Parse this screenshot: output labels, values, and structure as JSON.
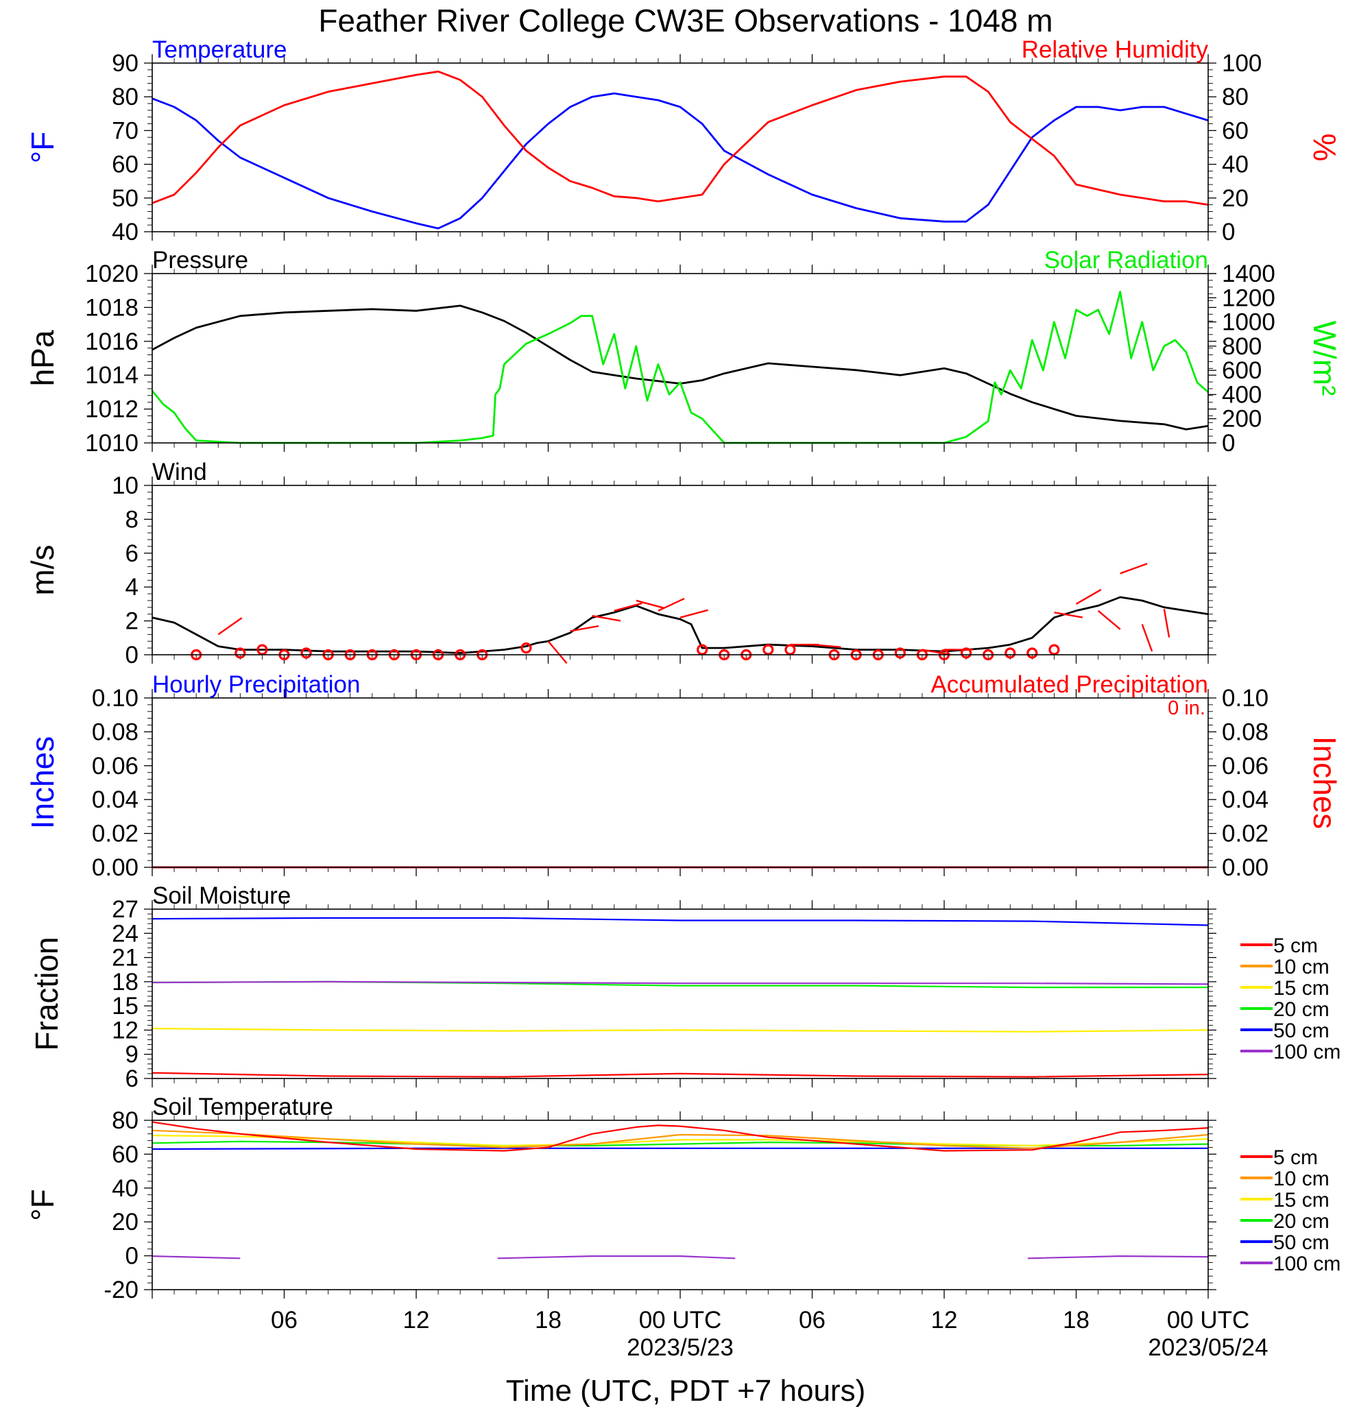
{
  "title": "Feather River College CW3E Observations - 1048 m",
  "xlabel": "Time (UTC, PDT +7 hours)",
  "x_ticks": [
    "06",
    "12",
    "18",
    "00 UTC",
    "06",
    "12",
    "18",
    "00 UTC"
  ],
  "x_dates": [
    "2023/5/23",
    "2023/05/24"
  ],
  "precip_total": "0 in.",
  "legend": [
    "5 cm",
    "10 cm",
    "15 cm",
    "20 cm",
    "50 cm",
    "100 cm"
  ],
  "colors": {
    "temperature": "#0000ff",
    "humidity": "#ff0000",
    "pressure": "#000000",
    "solar": "#00ee00",
    "wind": "#000000",
    "barbs": "#ff0000",
    "depths": [
      "#ff0000",
      "#ff9900",
      "#ffee00",
      "#00ee00",
      "#0000ff",
      "#9933cc"
    ]
  },
  "chart_data": [
    {
      "type": "line",
      "title_left": "Temperature",
      "title_right": "Relative Humidity",
      "ylabel_left": "°F",
      "ylabel_right": "%",
      "ylim_left": [
        40,
        90
      ],
      "ylim_right": [
        0,
        100
      ],
      "yticks_left": [
        "40",
        "50",
        "60",
        "70",
        "80",
        "90"
      ],
      "yticks_right": [
        "0",
        "20",
        "40",
        "60",
        "80",
        "100"
      ],
      "series": [
        {
          "name": "Temperature",
          "axis": "left",
          "x": [
            0,
            1,
            2,
            3,
            4,
            6,
            8,
            10,
            12,
            13,
            14,
            15,
            16,
            17,
            18,
            19,
            20,
            21,
            22,
            23,
            24,
            25,
            26,
            28,
            30,
            32,
            34,
            36,
            37,
            38,
            39,
            40,
            41,
            42,
            43,
            44,
            45,
            46,
            47,
            48
          ],
          "y": [
            79.5,
            77,
            73,
            67,
            62,
            56,
            50,
            46,
            42.5,
            41,
            44,
            50,
            58,
            66,
            72,
            77,
            80,
            81,
            80,
            79,
            77,
            72,
            64,
            57,
            51,
            47,
            44,
            43,
            43,
            48,
            58,
            68,
            73,
            77,
            77,
            76,
            77,
            77,
            75,
            73
          ]
        },
        {
          "name": "Relative Humidity",
          "axis": "right",
          "x": [
            0,
            1,
            2,
            3,
            4,
            6,
            8,
            10,
            12,
            13,
            14,
            15,
            16,
            17,
            18,
            19,
            20,
            21,
            22,
            23,
            24,
            25,
            26,
            28,
            30,
            32,
            34,
            36,
            37,
            38,
            39,
            40,
            41,
            42,
            43,
            44,
            45,
            46,
            47,
            48
          ],
          "y": [
            17,
            22,
            35,
            50,
            63,
            75,
            83,
            88,
            93,
            95,
            90,
            80,
            63,
            48,
            38,
            30,
            26,
            21,
            20,
            18,
            20,
            22,
            40,
            65,
            75,
            84,
            89,
            92,
            92,
            83,
            65,
            55,
            45,
            28,
            25,
            22,
            20,
            18,
            18,
            16
          ]
        }
      ]
    },
    {
      "type": "line",
      "title_left": "Pressure",
      "title_right": "Solar Radiation",
      "ylabel_left": "hPa",
      "ylabel_right": "W/m²",
      "ylim_left": [
        1010,
        1020
      ],
      "ylim_right": [
        0,
        1400
      ],
      "yticks_left": [
        "1010",
        "1012",
        "1014",
        "1016",
        "1018",
        "1020"
      ],
      "yticks_right": [
        "0",
        "200",
        "400",
        "600",
        "800",
        "1000",
        "1200",
        "1400"
      ],
      "series": [
        {
          "name": "Pressure",
          "axis": "left",
          "x": [
            0,
            1,
            2,
            4,
            6,
            8,
            10,
            12,
            14,
            15,
            16,
            17,
            18,
            19,
            20,
            22,
            24,
            25,
            26,
            28,
            30,
            32,
            34,
            36,
            37,
            38,
            39,
            40,
            41,
            42,
            44,
            46,
            47,
            48
          ],
          "y": [
            1015.5,
            1016.2,
            1016.8,
            1017.5,
            1017.7,
            1017.8,
            1017.9,
            1017.8,
            1018.1,
            1017.7,
            1017.2,
            1016.5,
            1015.7,
            1014.9,
            1014.2,
            1013.8,
            1013.5,
            1013.7,
            1014.1,
            1014.7,
            1014.5,
            1014.3,
            1014,
            1014.4,
            1014.1,
            1013.5,
            1012.9,
            1012.4,
            1012,
            1011.6,
            1011.3,
            1011.1,
            1010.8,
            1011
          ]
        },
        {
          "name": "Solar Radiation",
          "axis": "right",
          "x": [
            0,
            0.5,
            1,
            1.5,
            2,
            4,
            8,
            12,
            14,
            15,
            15.5,
            15.6,
            15.8,
            16,
            17,
            18,
            19,
            19.5,
            20,
            20.5,
            21,
            21.5,
            22,
            22.5,
            23,
            23.5,
            24,
            24.5,
            25,
            25.5,
            26,
            28,
            32,
            36,
            37,
            38,
            38.3,
            38.6,
            39,
            39.5,
            40,
            40.5,
            41,
            41.5,
            42,
            42.5,
            43,
            43.5,
            44,
            44.5,
            45,
            45.5,
            46,
            46.5,
            47,
            47.5,
            48
          ],
          "y": [
            430,
            320,
            250,
            120,
            20,
            0,
            0,
            0,
            20,
            40,
            60,
            400,
            450,
            650,
            820,
            900,
            990,
            1050,
            1050,
            650,
            900,
            450,
            800,
            350,
            650,
            400,
            500,
            250,
            200,
            100,
            0,
            0,
            0,
            0,
            50,
            180,
            500,
            400,
            600,
            450,
            850,
            600,
            1000,
            700,
            1100,
            1050,
            1100,
            900,
            1250,
            700,
            1000,
            600,
            800,
            850,
            750,
            500,
            420
          ]
        }
      ]
    },
    {
      "type": "line",
      "title_left": "Wind",
      "ylabel_left": "m/s",
      "ylim_left": [
        0,
        10
      ],
      "yticks_left": [
        "0",
        "2",
        "4",
        "6",
        "8",
        "10"
      ],
      "series": [
        {
          "name": "Wind",
          "axis": "left",
          "x": [
            0,
            1,
            2,
            3,
            4,
            6,
            8,
            10,
            12,
            14,
            15,
            16,
            17,
            17.5,
            18,
            19,
            20,
            21,
            22,
            23,
            24,
            24.5,
            25,
            26,
            28,
            30,
            32,
            34,
            36,
            37,
            38,
            39,
            40,
            41,
            42,
            43,
            44,
            45,
            46,
            47,
            48
          ],
          "y": [
            2.2,
            1.9,
            1.2,
            0.5,
            0.3,
            0.3,
            0.2,
            0.2,
            0.2,
            0.1,
            0.2,
            0.3,
            0.5,
            0.7,
            0.8,
            1.3,
            2.2,
            2.5,
            2.9,
            2.4,
            2.1,
            1.8,
            0.4,
            0.4,
            0.6,
            0.5,
            0.3,
            0.3,
            0.2,
            0.3,
            0.4,
            0.6,
            1.0,
            2.2,
            2.6,
            2.9,
            3.4,
            3.2,
            2.8,
            2.6,
            2.4
          ]
        }
      ],
      "markers": {
        "x": [
          2,
          4,
          5,
          6,
          7,
          8,
          9,
          10,
          11,
          12,
          13,
          14,
          15,
          17,
          25,
          26,
          27,
          28,
          29,
          31,
          32,
          33,
          34,
          35,
          36,
          37,
          38,
          39,
          40,
          41
        ],
        "y": [
          0,
          0.1,
          0.3,
          0,
          0.1,
          0,
          0,
          0,
          0,
          0,
          0,
          0,
          0,
          0.4,
          0.3,
          0,
          0,
          0.3,
          0.3,
          0,
          0,
          0,
          0.1,
          0,
          0,
          0.1,
          0,
          0.1,
          0.1,
          0.3
        ]
      },
      "barbs": {
        "x": [
          3,
          18,
          19,
          20,
          21,
          22,
          23,
          24,
          29,
          30,
          35,
          36,
          41,
          42,
          43,
          44,
          45,
          46
        ],
        "speed": [
          1.2,
          0.8,
          1.4,
          2.3,
          2.6,
          3.2,
          2.6,
          2.2,
          0.6,
          0.6,
          0.3,
          0.3,
          2.5,
          3.0,
          2.6,
          4.8,
          1.8,
          2.7
        ]
      }
    },
    {
      "type": "line",
      "title_left": "Hourly Precipitation",
      "title_right": "Accumulated Precipitation",
      "ylabel_left": "Inches",
      "ylabel_right": "Inches",
      "ylim_left": [
        0,
        0.1
      ],
      "ylim_right": [
        0,
        0.1
      ],
      "yticks_left": [
        "0.00",
        "0.02",
        "0.04",
        "0.06",
        "0.08",
        "0.10"
      ],
      "yticks_right": [
        "0.00",
        "0.02",
        "0.04",
        "0.06",
        "0.08",
        "0.10"
      ],
      "series": [
        {
          "name": "Hourly Precipitation",
          "axis": "left",
          "x": [
            0,
            48
          ],
          "y": [
            0,
            0
          ]
        },
        {
          "name": "Accumulated Precipitation",
          "axis": "right",
          "x": [
            0,
            48
          ],
          "y": [
            0,
            0
          ]
        }
      ]
    },
    {
      "type": "line",
      "title_left": "Soil Moisture",
      "ylabel_left": "Fraction",
      "ylim_left": [
        6,
        27
      ],
      "yticks_left": [
        "6",
        "9",
        "12",
        "15",
        "18",
        "21",
        "24",
        "27"
      ],
      "series": [
        {
          "name": "5 cm",
          "axis": "left",
          "x": [
            0,
            8,
            16,
            24,
            32,
            40,
            48
          ],
          "y": [
            6.7,
            6.3,
            6.2,
            6.6,
            6.3,
            6.2,
            6.5
          ]
        },
        {
          "name": "15 cm",
          "axis": "left",
          "x": [
            0,
            8,
            16,
            24,
            32,
            40,
            48
          ],
          "y": [
            12.2,
            12.0,
            11.9,
            12.0,
            11.9,
            11.8,
            12.0
          ]
        },
        {
          "name": "20 cm",
          "axis": "left",
          "x": [
            0,
            8,
            16,
            24,
            32,
            40,
            48
          ],
          "y": [
            17.9,
            18.0,
            17.8,
            17.5,
            17.5,
            17.3,
            17.3
          ]
        },
        {
          "name": "100 cm",
          "axis": "left",
          "x": [
            0,
            8,
            16,
            24,
            32,
            40,
            48
          ],
          "y": [
            17.9,
            18.0,
            17.9,
            17.8,
            17.8,
            17.8,
            17.7
          ]
        },
        {
          "name": "50 cm",
          "axis": "left",
          "x": [
            0,
            8,
            16,
            24,
            32,
            40,
            48
          ],
          "y": [
            25.8,
            25.9,
            25.9,
            25.6,
            25.6,
            25.5,
            25.0
          ]
        }
      ]
    },
    {
      "type": "line",
      "title_left": "Soil Temperature",
      "ylabel_left": "°F",
      "ylim_left": [
        -20,
        80
      ],
      "yticks_left": [
        "-20",
        "0",
        "20",
        "40",
        "60",
        "80"
      ],
      "series": [
        {
          "name": "50 cm",
          "axis": "left",
          "x": [
            0,
            12,
            24,
            36,
            48
          ],
          "y": [
            63,
            63.5,
            63.5,
            63.5,
            63.5
          ]
        },
        {
          "name": "20 cm",
          "axis": "left",
          "x": [
            0,
            4,
            8,
            12,
            16,
            20,
            24,
            28,
            32,
            36,
            40,
            44,
            48
          ],
          "y": [
            66.5,
            67.5,
            67,
            66,
            65,
            65,
            66,
            67,
            66.5,
            65.5,
            65,
            65,
            66
          ]
        },
        {
          "name": "15 cm",
          "axis": "left",
          "x": [
            0,
            4,
            8,
            12,
            16,
            20,
            24,
            28,
            32,
            36,
            40,
            44,
            48
          ],
          "y": [
            71,
            70.5,
            69,
            67,
            65,
            66,
            68.5,
            68.5,
            67.5,
            66,
            65,
            67,
            69
          ]
        },
        {
          "name": "10 cm",
          "axis": "left",
          "x": [
            0,
            4,
            8,
            12,
            16,
            20,
            24,
            28,
            32,
            36,
            40,
            44,
            48
          ],
          "y": [
            74,
            72,
            69,
            66,
            64,
            66,
            71.5,
            71,
            68,
            65,
            63.5,
            67,
            71.5
          ]
        },
        {
          "name": "5 cm",
          "axis": "left",
          "x": [
            0,
            2,
            4,
            8,
            12,
            16,
            18,
            20,
            22,
            23,
            24,
            26,
            28,
            32,
            36,
            40,
            42,
            44,
            46,
            48
          ],
          "y": [
            79,
            75,
            72,
            67,
            63,
            62,
            64,
            72,
            76,
            77,
            76.5,
            74,
            70,
            66,
            62,
            62.5,
            67,
            73,
            74,
            75.5
          ]
        },
        {
          "name": "100 cm",
          "axis": "left",
          "segments": [
            {
              "x": [
                0,
                4
              ],
              "y": [
                -0.2,
                -1.5
              ]
            },
            {
              "x": [
                15.7,
                20,
                24,
                26.5
              ],
              "y": [
                -1.5,
                -0.2,
                -0.2,
                -1.5
              ]
            },
            {
              "x": [
                39.8,
                44,
                48
              ],
              "y": [
                -1.5,
                -0.2,
                -0.6
              ]
            }
          ]
        }
      ]
    }
  ]
}
